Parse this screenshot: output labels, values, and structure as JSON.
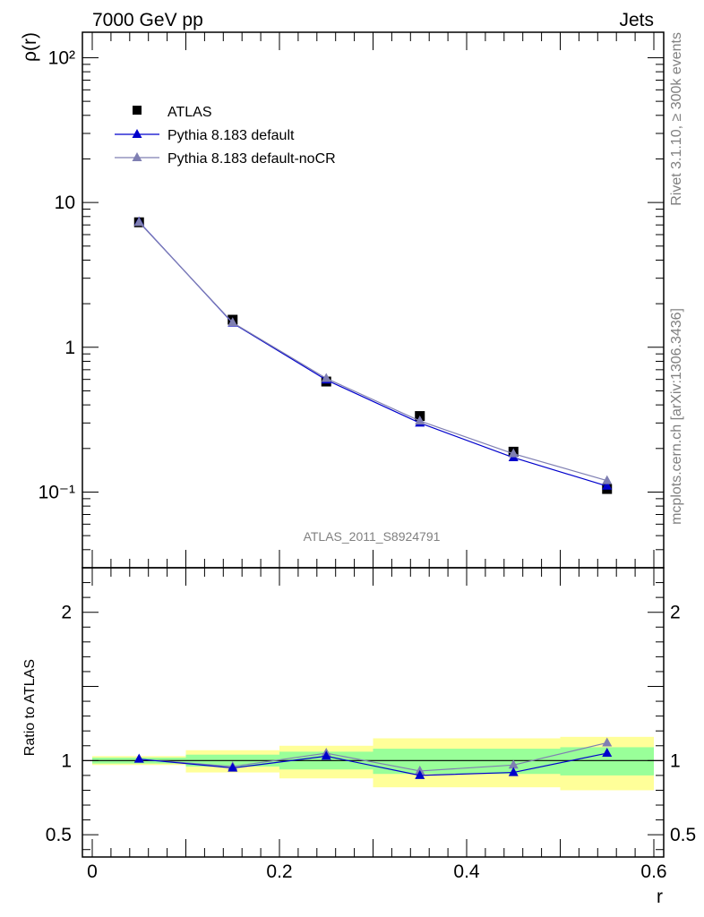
{
  "header": {
    "left_title": "7000 GeV pp",
    "right_title": "Jets"
  },
  "side_text": {
    "top": "Rivet 3.1.10, ≥ 300k events",
    "bottom": "mcplots.cern.ch [arXiv:1306.3436]"
  },
  "watermark": "ATLAS_2011_S8924791",
  "colors": {
    "atlas": "#000000",
    "default": "#0000cc",
    "nocr": "#7f7fb2",
    "band_inner": "#99ff99",
    "band_outer": "#ffff99"
  },
  "chart_data": [
    {
      "type": "line",
      "panel": "main",
      "yscale": "log",
      "xlabel": "",
      "ylabel": "ρ(r)",
      "xlim": [
        0,
        0.6
      ],
      "ylim": [
        0.03,
        150
      ],
      "ytick_labels": [
        "10⁻¹",
        "1",
        "10",
        "10²"
      ],
      "ytick_values": [
        0.1,
        1,
        10,
        100
      ],
      "x": [
        0.05,
        0.15,
        0.25,
        0.35,
        0.45,
        0.55
      ],
      "series": [
        {
          "name": "ATLAS",
          "marker": "square",
          "values": [
            7.3,
            1.55,
            0.58,
            0.335,
            0.19,
            0.105
          ]
        },
        {
          "name": "Pythia 8.183 default",
          "marker": "triangle",
          "values": [
            7.35,
            1.47,
            0.595,
            0.3,
            0.173,
            0.11
          ]
        },
        {
          "name": "Pythia 8.183 default-noCR",
          "marker": "triangle",
          "values": [
            7.3,
            1.48,
            0.61,
            0.31,
            0.184,
            0.12
          ]
        }
      ],
      "legend": "top-left"
    },
    {
      "type": "line",
      "panel": "ratio",
      "xlabel": "r",
      "ylabel": "Ratio to ATLAS",
      "xlim": [
        0,
        0.6
      ],
      "ylim": [
        0.35,
        2.3
      ],
      "xtick_labels": [
        "0",
        "0.2",
        "0.4",
        "0.6"
      ],
      "xtick_values": [
        0,
        0.2,
        0.4,
        0.6
      ],
      "ytick_labels": [
        "0.5",
        "1",
        "2"
      ],
      "ytick_values": [
        0.5,
        1,
        2
      ],
      "x": [
        0.05,
        0.15,
        0.25,
        0.35,
        0.45,
        0.55
      ],
      "bands": {
        "bin_edges": [
          0.0,
          0.1,
          0.2,
          0.3,
          0.4,
          0.5,
          0.6
        ],
        "inner_low": [
          0.98,
          0.96,
          0.94,
          0.91,
          0.91,
          0.9
        ],
        "inner_high": [
          1.02,
          1.04,
          1.06,
          1.08,
          1.08,
          1.09
        ],
        "outer_low": [
          0.97,
          0.92,
          0.88,
          0.82,
          0.82,
          0.8
        ],
        "outer_high": [
          1.03,
          1.07,
          1.1,
          1.15,
          1.15,
          1.16
        ]
      },
      "series": [
        {
          "name": "Pythia 8.183 default",
          "values": [
            1.01,
            0.95,
            1.03,
            0.9,
            0.92,
            1.05
          ]
        },
        {
          "name": "Pythia 8.183 default-noCR",
          "values": [
            1.01,
            0.96,
            1.05,
            0.93,
            0.97,
            1.12
          ]
        }
      ]
    }
  ]
}
